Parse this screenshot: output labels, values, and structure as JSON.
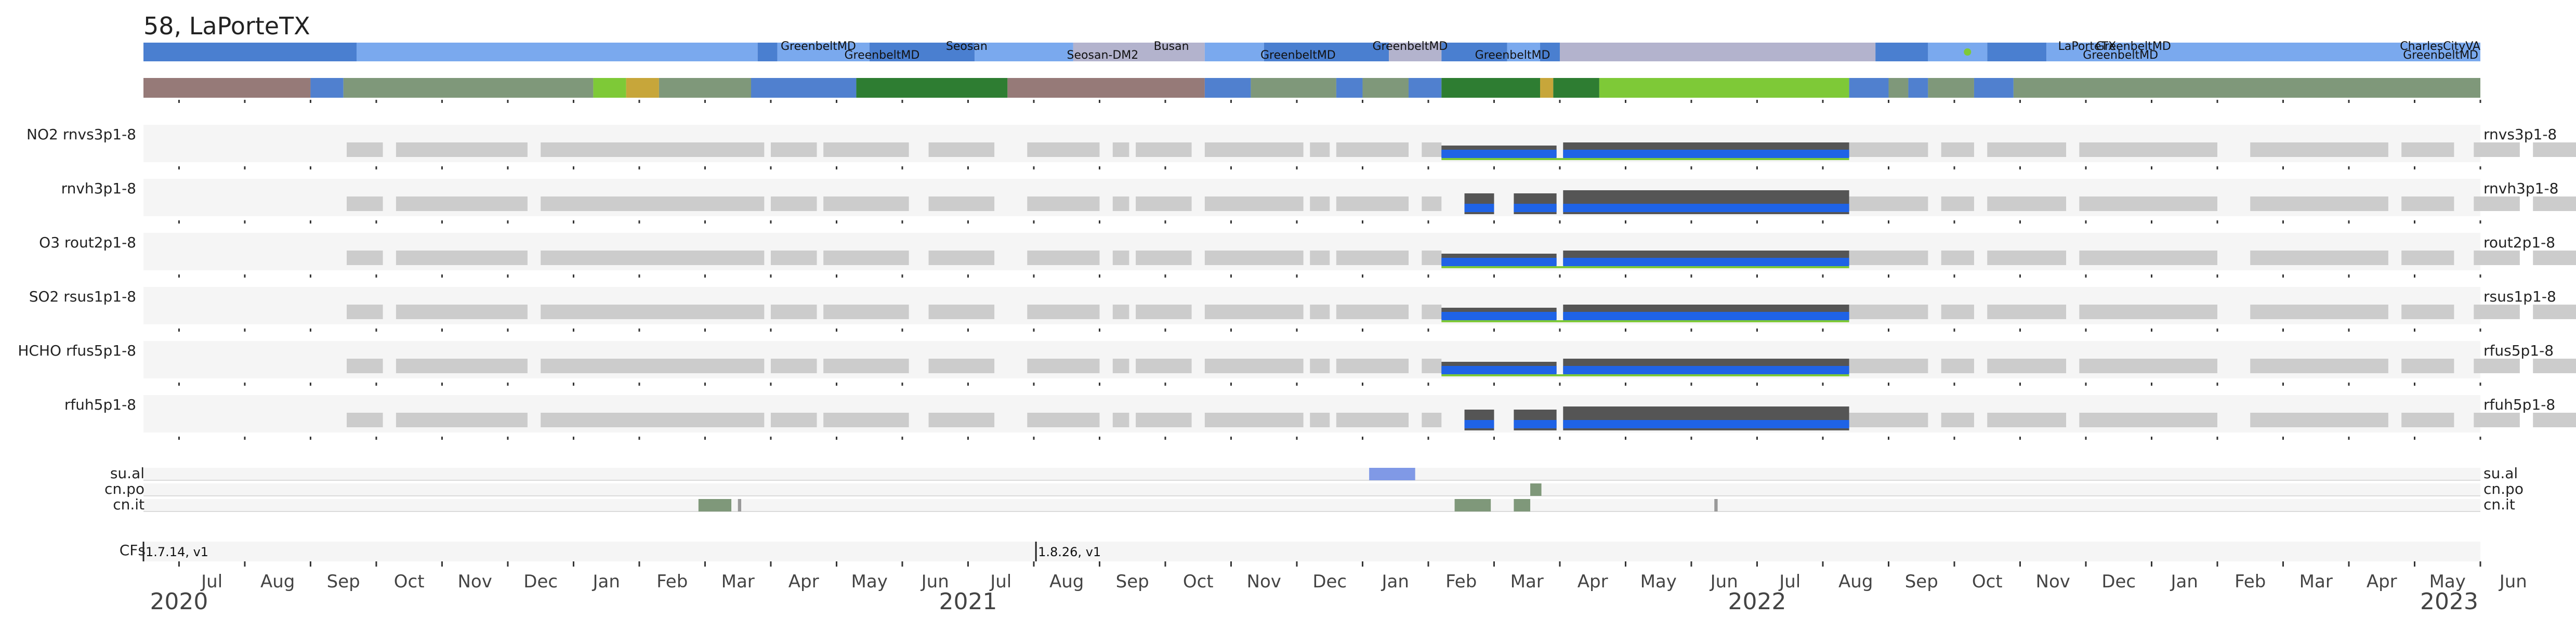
{
  "title": "58, LaPorteTX",
  "chart_data": {
    "type": "timeline",
    "x_range": [
      "2020-06-15",
      "2023-06-01"
    ],
    "months": [
      "Jul",
      "Aug",
      "Sep",
      "Oct",
      "Nov",
      "Dec",
      "Jan",
      "Feb",
      "Mar",
      "Apr",
      "May",
      "Jun",
      "Jul",
      "Aug",
      "Sep",
      "Oct",
      "Nov",
      "Dec",
      "Jan",
      "Feb",
      "Mar",
      "Apr",
      "May",
      "Jun",
      "Jul",
      "Aug",
      "Sep",
      "Oct",
      "Nov",
      "Dec",
      "Jan",
      "Feb",
      "Mar",
      "Apr",
      "May",
      "Jun"
    ],
    "years": [
      "2020",
      "2021",
      "2022",
      "2023"
    ],
    "deployment_labels": [
      {
        "text": "GreenbeltMD",
        "date": "2021-05-10",
        "row": 0
      },
      {
        "text": "GreenbeltMD",
        "date": "2021-06-10",
        "row": 1
      },
      {
        "text": "Seosan",
        "date": "2021-07-10",
        "row": 0
      },
      {
        "text": "Seosan-DM2",
        "date": "2021-09-20",
        "row": 1
      },
      {
        "text": "Busan",
        "date": "2021-10-12",
        "row": 0
      },
      {
        "text": "GreenbeltMD",
        "date": "2021-12-20",
        "row": 1
      },
      {
        "text": "GreenbeltMD",
        "date": "2022-02-10",
        "row": 0
      },
      {
        "text": "GreenbeltMD",
        "date": "2022-03-28",
        "row": 1
      },
      {
        "text": "LaPorteTX",
        "date": "2022-12-15",
        "row": 0
      },
      {
        "text": "GreenbeltMD",
        "date": "2023-01-10",
        "row": 0
      },
      {
        "text": "GreenbeltMD",
        "date": "2023-01-05",
        "row": 1
      },
      {
        "text": "CharlesCityVA",
        "date": "2024-06-15",
        "row": 0
      },
      {
        "text": "GreenbeltMD",
        "date": "2024-06-15",
        "row": 1
      }
    ],
    "data_rows": [
      {
        "left": "NO2  rnvs3p1-8",
        "right": "rnvs3p1-8"
      },
      {
        "left": "rnvh3p1-8",
        "right": "rnvh3p1-8"
      },
      {
        "left": "O3  rout2p1-8",
        "right": "rout2p1-8"
      },
      {
        "left": "SO2  rsus1p1-8",
        "right": "rsus1p1-8"
      },
      {
        "left": "HCHO  rfus5p1-8",
        "right": "rfus5p1-8"
      },
      {
        "left": "rfuh5p1-8",
        "right": "rfuh5p1-8"
      }
    ],
    "flag_rows": [
      {
        "left": "su.al",
        "right": "su.al"
      },
      {
        "left": "cn.po",
        "right": "cn.po"
      },
      {
        "left": "cn.it",
        "right": "cn.it"
      }
    ],
    "cf_label": "CFs",
    "cf_versions": [
      {
        "text": "1.7.14, v1",
        "date": "2020-06-15"
      },
      {
        "text": "1.8.26, v1",
        "date": "2021-08-02"
      }
    ],
    "colors": {
      "location_blue": "#4a7fd0",
      "location_lightblue": "#7aa9ee",
      "location_lavender": "#b3b3cd",
      "status_brown": "#967a78",
      "status_sage": "#7f987a",
      "status_lime": "#7ec937",
      "status_darkgreen": "#2e7d32",
      "status_gold": "#c7a63a",
      "status_blue": "#5080cf",
      "measurement_dark": "#555555",
      "measurement_blue": "#1f63e6",
      "measurement_gap": "#cccccc",
      "quality_green": "#7ec937",
      "flag_blue": "#8099e6",
      "flag_green": "#7f987a",
      "panel_bg": "#f5f5f5"
    }
  }
}
